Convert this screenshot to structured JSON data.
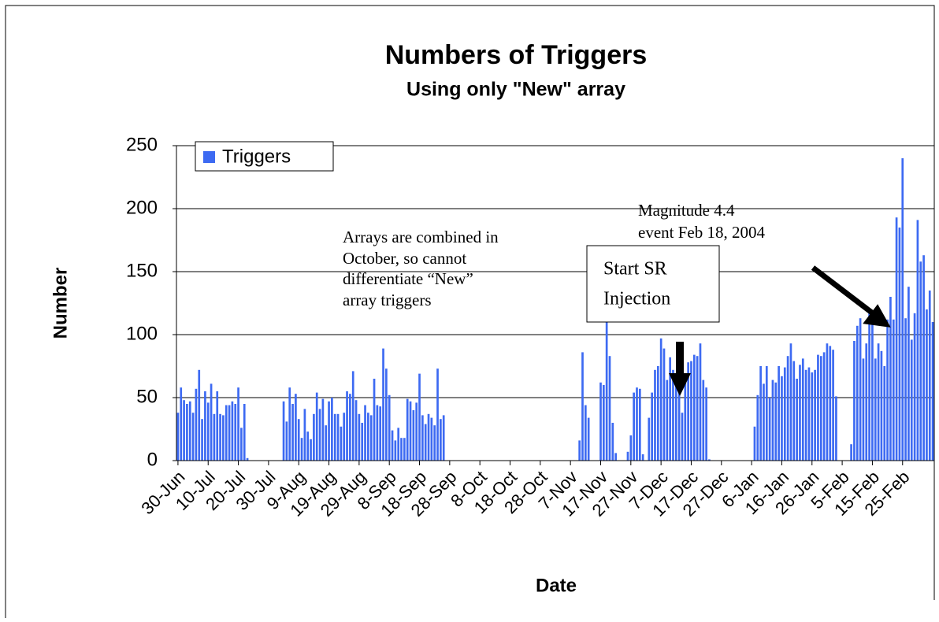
{
  "chart_data": {
    "type": "bar",
    "title": "Numbers of Triggers",
    "subtitle": "Using only \"New\" array",
    "y_label": "Number",
    "x_label": "Date",
    "annotations": [
      [
        "Arrays are combined in",
        "October, so cannot",
        "differentiate “New”",
        "array triggers"
      ],
      [
        "Start SR",
        "Injection"
      ],
      [
        "Magnitude 4.4",
        "event Feb 18, 2004"
      ]
    ],
    "categories": [
      "30-Jun",
      null,
      null,
      null,
      null,
      null,
      null,
      null,
      null,
      null,
      "10-Jul",
      null,
      null,
      null,
      null,
      null,
      null,
      null,
      null,
      null,
      "20-Jul",
      null,
      null,
      null,
      null,
      null,
      null,
      null,
      null,
      null,
      "30-Jul",
      null,
      null,
      null,
      null,
      null,
      null,
      null,
      null,
      null,
      "9-Aug",
      null,
      null,
      null,
      null,
      null,
      null,
      null,
      null,
      null,
      "19-Aug",
      null,
      null,
      null,
      null,
      null,
      null,
      null,
      null,
      null,
      "29-Aug",
      null,
      null,
      null,
      null,
      null,
      null,
      null,
      null,
      null,
      "8-Sep",
      null,
      null,
      null,
      null,
      null,
      null,
      null,
      null,
      null,
      "18-Sep",
      null,
      null,
      null,
      null,
      null,
      null,
      null,
      null,
      null,
      "28-Sep",
      null,
      null,
      null,
      null,
      null,
      null,
      null,
      null,
      null,
      "8-Oct",
      null,
      null,
      null,
      null,
      null,
      null,
      null,
      null,
      null,
      "18-Oct",
      null,
      null,
      null,
      null,
      null,
      null,
      null,
      null,
      null,
      "28-Oct",
      null,
      null,
      null,
      null,
      null,
      null,
      null,
      null,
      null,
      "7-Nov",
      null,
      null,
      null,
      null,
      null,
      null,
      null,
      null,
      null,
      "17-Nov",
      null,
      null,
      null,
      null,
      null,
      null,
      null,
      null,
      null,
      "27-Nov",
      null,
      null,
      null,
      null,
      null,
      null,
      null,
      null,
      null,
      "7-Dec",
      null,
      null,
      null,
      null,
      null,
      null,
      null,
      null,
      null,
      "17-Dec",
      null,
      null,
      null,
      null,
      null,
      null,
      null,
      null,
      null,
      "27-Dec",
      null,
      null,
      null,
      null,
      null,
      null,
      null,
      null,
      null,
      "6-Jan",
      null,
      null,
      null,
      null,
      null,
      null,
      null,
      null,
      null,
      "16-Jan",
      null,
      null,
      null,
      null,
      null,
      null,
      null,
      null,
      null,
      "26-Jan",
      null,
      null,
      null,
      null,
      null,
      null,
      null,
      null,
      null,
      "5-Feb",
      null,
      null,
      null,
      null,
      null,
      null,
      null,
      null,
      null,
      "15-Feb",
      null,
      null,
      null,
      null,
      null,
      null,
      null,
      null,
      null,
      "25-Feb",
      null,
      null,
      null,
      null,
      null,
      null,
      null,
      null,
      null,
      null
    ],
    "series": [
      {
        "name": "Triggers",
        "color": "#3d6af2",
        "values": [
          38,
          58,
          48,
          45,
          47,
          38,
          57,
          72,
          33,
          55,
          46,
          61,
          37,
          55,
          37,
          36,
          44,
          44,
          47,
          45,
          58,
          26,
          45,
          2,
          0,
          0,
          0,
          0,
          0,
          0,
          0,
          0,
          0,
          0,
          0,
          47,
          31,
          58,
          45,
          53,
          33,
          18,
          41,
          23,
          17,
          37,
          54,
          41,
          49,
          28,
          47,
          50,
          37,
          37,
          27,
          38,
          55,
          53,
          71,
          48,
          37,
          30,
          44,
          38,
          36,
          65,
          44,
          43,
          89,
          73,
          52,
          24,
          16,
          26,
          18,
          18,
          49,
          47,
          40,
          46,
          69,
          36,
          29,
          37,
          34,
          28,
          73,
          33,
          36,
          0,
          0,
          0,
          0,
          0,
          0,
          0,
          0,
          0,
          0,
          0,
          0,
          0,
          0,
          0,
          0,
          0,
          0,
          0,
          0,
          0,
          0,
          0,
          0,
          0,
          0,
          0,
          0,
          0,
          0,
          0,
          0,
          0,
          0,
          0,
          0,
          0,
          0,
          0,
          0,
          0,
          0,
          0,
          0,
          16,
          86,
          44,
          34,
          0,
          0,
          0,
          62,
          60,
          110,
          83,
          30,
          6,
          0,
          0,
          0,
          7,
          20,
          54,
          58,
          57,
          5,
          0,
          34,
          54,
          72,
          75,
          97,
          89,
          64,
          82,
          72,
          62,
          68,
          38,
          63,
          78,
          79,
          84,
          83,
          93,
          64,
          58,
          1,
          0,
          0,
          0,
          0,
          0,
          0,
          0,
          0,
          0,
          0,
          0,
          0,
          0,
          0,
          27,
          52,
          75,
          61,
          75,
          50,
          64,
          62,
          75,
          67,
          74,
          83,
          93,
          79,
          65,
          76,
          81,
          72,
          74,
          70,
          72,
          84,
          83,
          86,
          93,
          91,
          88,
          51,
          0,
          0,
          0,
          0,
          13,
          95,
          107,
          113,
          81,
          93,
          119,
          109,
          81,
          93,
          87,
          75,
          112,
          130,
          112,
          193,
          185,
          240,
          113,
          138,
          96,
          117,
          191,
          158,
          163,
          120,
          135,
          110
        ]
      }
    ],
    "ylim": [
      0,
      250
    ],
    "yticks": [
      0,
      50,
      100,
      150,
      200,
      250
    ],
    "grid": true,
    "legend": "top-left"
  }
}
